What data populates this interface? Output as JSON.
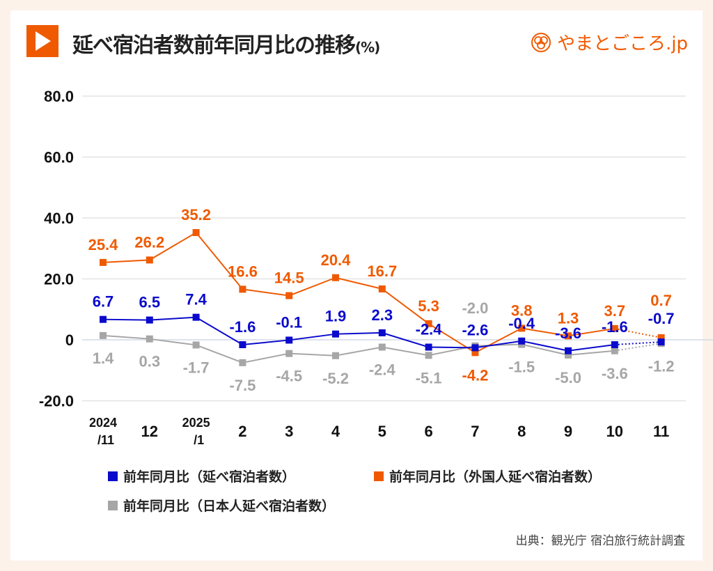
{
  "header": {
    "title": "延べ宿泊者数前年同月比の推移",
    "unit": "(%)",
    "logo_text": "やまとごころ.jp",
    "accent": "#ef5a00"
  },
  "source": "出典：観光庁 宿泊旅行統計調査",
  "chart_data": {
    "type": "line",
    "categories": [
      "2024/11",
      "12",
      "2025/1",
      "2",
      "3",
      "4",
      "5",
      "6",
      "7",
      "8",
      "9",
      "10",
      "11"
    ],
    "category_lines": [
      [
        "2024",
        "/11"
      ],
      [
        "12"
      ],
      [
        "2025",
        "/1"
      ],
      [
        "2"
      ],
      [
        "3"
      ],
      [
        "4"
      ],
      [
        "5"
      ],
      [
        "6"
      ],
      [
        "7"
      ],
      [
        "8"
      ],
      [
        "9"
      ],
      [
        "10"
      ],
      [
        "11"
      ]
    ],
    "ylim": [
      -20,
      80
    ],
    "yticks": [
      "80.0",
      "60.0",
      "40.0",
      "20.0",
      "0",
      "-20.0"
    ],
    "ytick_values": [
      80,
      60,
      40,
      20,
      0,
      -20
    ],
    "grid": true,
    "legend_position": "bottom",
    "last_segment_style": "dotted",
    "series": [
      {
        "name": "前年同月比（延べ宿泊者数）",
        "color": "#0a0acc",
        "values": [
          6.7,
          6.5,
          7.4,
          -1.6,
          -0.1,
          1.9,
          2.3,
          -2.4,
          -2.6,
          -0.4,
          -3.6,
          -1.6,
          -0.7
        ],
        "label_side": "above"
      },
      {
        "name": "前年同月比（外国人延べ宿泊者数）",
        "color": "#ef5a00",
        "values": [
          25.4,
          26.2,
          35.2,
          16.6,
          14.5,
          20.4,
          16.7,
          5.3,
          -4.2,
          3.8,
          1.3,
          3.7,
          0.7
        ],
        "label_side": "above"
      },
      {
        "name": "前年同月比（日本人延べ宿泊者数）",
        "color": "#a6a6a6",
        "values": [
          1.4,
          0.3,
          -1.7,
          -7.5,
          -4.5,
          -5.2,
          -2.4,
          -5.1,
          -2.0,
          -1.5,
          -5.0,
          -3.6,
          -1.2
        ],
        "label_side": "below"
      }
    ]
  }
}
